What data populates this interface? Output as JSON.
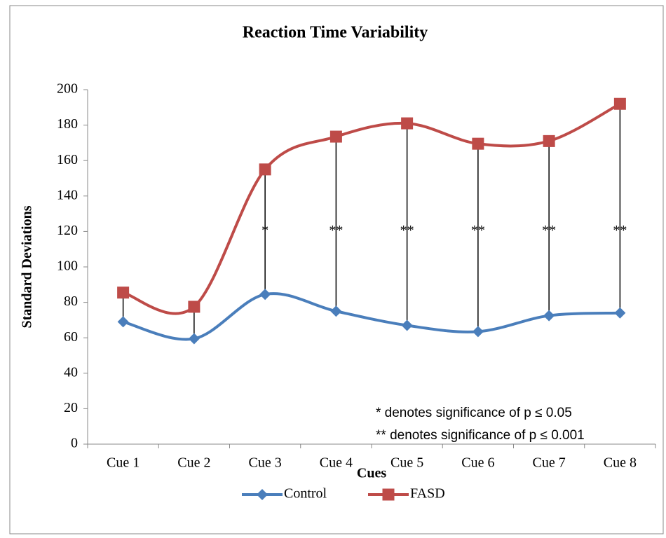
{
  "chart_data": {
    "type": "line",
    "title": "Reaction Time Variability",
    "x_label": "Cues",
    "y_label": "Standard Deviations",
    "categories": [
      "Cue 1",
      "Cue 2",
      "Cue 3",
      "Cue 4",
      "Cue 5",
      "Cue 6",
      "Cue 7",
      "Cue 8"
    ],
    "series": [
      {
        "name": "Control",
        "color": "#4a7ebb",
        "marker": "diamond",
        "values": [
          69,
          59.5,
          84.5,
          75,
          67,
          63.5,
          72.5,
          74
        ]
      },
      {
        "name": "FASD",
        "color": "#be4b48",
        "marker": "square",
        "values": [
          85.5,
          77.5,
          155,
          173.5,
          181,
          169.5,
          171,
          192
        ]
      }
    ],
    "significance": [
      null,
      null,
      "*",
      "**",
      "**",
      "**",
      "**",
      "**"
    ],
    "significance_level": 120,
    "notes": [
      "* denotes significance of  p ≤ 0.05",
      "** denotes significance of p ≤ 0.001"
    ],
    "ylim": [
      0,
      200
    ],
    "yticks": [
      0,
      20,
      40,
      60,
      80,
      100,
      120,
      140,
      160,
      180,
      200
    ],
    "smooth": true,
    "drop_lines": true,
    "grid": false,
    "legend": "bottom"
  }
}
